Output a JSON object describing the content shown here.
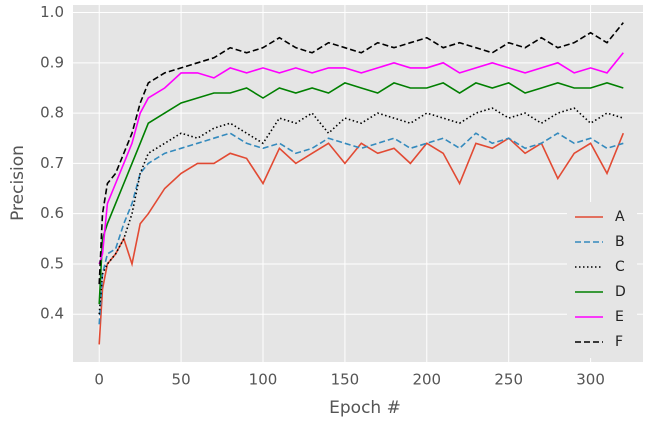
{
  "chart_data": {
    "type": "line",
    "xlabel": "Epoch #",
    "ylabel": "Precision",
    "x": [
      0,
      2,
      5,
      10,
      15,
      20,
      25,
      30,
      40,
      50,
      60,
      70,
      80,
      90,
      100,
      110,
      120,
      130,
      140,
      150,
      160,
      170,
      180,
      190,
      200,
      210,
      220,
      230,
      240,
      250,
      260,
      270,
      280,
      290,
      300,
      310,
      320
    ],
    "series": [
      {
        "name": "A",
        "color": "#e24a33",
        "dash": "solid",
        "values": [
          0.34,
          0.45,
          0.5,
          0.52,
          0.55,
          0.5,
          0.58,
          0.6,
          0.65,
          0.68,
          0.7,
          0.7,
          0.72,
          0.71,
          0.66,
          0.73,
          0.7,
          0.72,
          0.74,
          0.7,
          0.74,
          0.72,
          0.73,
          0.7,
          0.74,
          0.72,
          0.66,
          0.74,
          0.73,
          0.75,
          0.72,
          0.74,
          0.67,
          0.72,
          0.74,
          0.68,
          0.76
        ]
      },
      {
        "name": "B",
        "color": "#348abd",
        "dash": "dashed",
        "values": [
          0.38,
          0.48,
          0.52,
          0.53,
          0.58,
          0.62,
          0.68,
          0.7,
          0.72,
          0.73,
          0.74,
          0.75,
          0.76,
          0.74,
          0.73,
          0.74,
          0.72,
          0.73,
          0.75,
          0.74,
          0.73,
          0.74,
          0.75,
          0.73,
          0.74,
          0.75,
          0.73,
          0.76,
          0.74,
          0.75,
          0.73,
          0.74,
          0.76,
          0.74,
          0.75,
          0.73,
          0.74
        ]
      },
      {
        "name": "C",
        "color": "#000000",
        "dash": "dotted",
        "values": [
          0.4,
          0.48,
          0.5,
          0.52,
          0.55,
          0.6,
          0.68,
          0.72,
          0.74,
          0.76,
          0.75,
          0.77,
          0.78,
          0.76,
          0.74,
          0.79,
          0.78,
          0.8,
          0.76,
          0.79,
          0.78,
          0.8,
          0.79,
          0.78,
          0.8,
          0.79,
          0.78,
          0.8,
          0.81,
          0.79,
          0.8,
          0.78,
          0.8,
          0.81,
          0.78,
          0.8,
          0.79
        ]
      },
      {
        "name": "D",
        "color": "#008000",
        "dash": "solid",
        "values": [
          0.42,
          0.55,
          0.58,
          0.62,
          0.66,
          0.7,
          0.74,
          0.78,
          0.8,
          0.82,
          0.83,
          0.84,
          0.84,
          0.85,
          0.83,
          0.85,
          0.84,
          0.85,
          0.84,
          0.86,
          0.85,
          0.84,
          0.86,
          0.85,
          0.85,
          0.86,
          0.84,
          0.86,
          0.85,
          0.86,
          0.84,
          0.85,
          0.86,
          0.85,
          0.85,
          0.86,
          0.85
        ]
      },
      {
        "name": "E",
        "color": "#ff00ff",
        "dash": "solid",
        "values": [
          0.5,
          0.52,
          0.62,
          0.66,
          0.7,
          0.74,
          0.8,
          0.83,
          0.85,
          0.88,
          0.88,
          0.87,
          0.89,
          0.88,
          0.89,
          0.88,
          0.89,
          0.88,
          0.89,
          0.89,
          0.88,
          0.89,
          0.9,
          0.89,
          0.89,
          0.9,
          0.88,
          0.89,
          0.9,
          0.89,
          0.88,
          0.89,
          0.9,
          0.88,
          0.89,
          0.88,
          0.92
        ]
      },
      {
        "name": "F",
        "color": "#000000",
        "dash": "dashed",
        "values": [
          0.46,
          0.6,
          0.66,
          0.68,
          0.72,
          0.76,
          0.82,
          0.86,
          0.88,
          0.89,
          0.9,
          0.91,
          0.93,
          0.92,
          0.93,
          0.95,
          0.93,
          0.92,
          0.94,
          0.93,
          0.92,
          0.94,
          0.93,
          0.94,
          0.95,
          0.93,
          0.94,
          0.93,
          0.92,
          0.94,
          0.93,
          0.95,
          0.93,
          0.94,
          0.96,
          0.94,
          0.98
        ]
      }
    ],
    "xlim": [
      -16,
      332
    ],
    "ylim": [
      0.305,
      1.015
    ],
    "xticks": [
      0,
      50,
      100,
      150,
      200,
      250,
      300
    ],
    "yticks": [
      0.4,
      0.5,
      0.6,
      0.7,
      0.8,
      0.9,
      {
        "value": 1,
        "label": "1.0"
      }
    ],
    "grid": true,
    "legend": "lower right"
  }
}
